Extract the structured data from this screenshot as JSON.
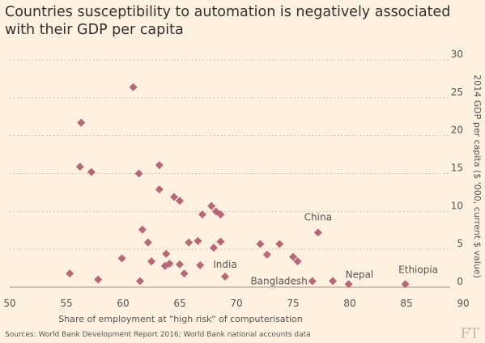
{
  "title": "Countries susceptibility to automation is negatively associated with their GDP per capita",
  "source": "Sources: World Bank Development Report 2016; World Bank national accounts data",
  "logo": "FT",
  "colors": {
    "marker": "#b76778",
    "background": "#fff1e0",
    "grid": "#c0b7ad",
    "text": "#555555"
  },
  "chart_data": {
    "type": "scatter",
    "xlabel": "Share of employment at \"high risk\" of computerisation",
    "ylabel": "2014 GDP per capita ($ '000, current $ value)",
    "xlim": [
      50,
      90
    ],
    "ylim": [
      0,
      30
    ],
    "x_ticks": [
      "50",
      "55",
      "60",
      "65",
      "70",
      "75",
      "80",
      "85",
      "90"
    ],
    "y_ticks": [
      "0",
      "5",
      "10",
      "15",
      "20",
      "25",
      "30"
    ],
    "grid": "horizontal dotted",
    "y_axis_side": "right",
    "points": [
      {
        "x": 60.9,
        "y": 26.4
      },
      {
        "x": 56.3,
        "y": 21.7
      },
      {
        "x": 56.2,
        "y": 15.9
      },
      {
        "x": 57.2,
        "y": 15.2
      },
      {
        "x": 61.4,
        "y": 15.0
      },
      {
        "x": 63.2,
        "y": 16.1
      },
      {
        "x": 63.2,
        "y": 12.9
      },
      {
        "x": 64.5,
        "y": 11.9
      },
      {
        "x": 65.0,
        "y": 11.4
      },
      {
        "x": 67.8,
        "y": 10.7
      },
      {
        "x": 68.2,
        "y": 10.0
      },
      {
        "x": 68.6,
        "y": 9.6
      },
      {
        "x": 67.0,
        "y": 9.6
      },
      {
        "x": 61.7,
        "y": 7.6
      },
      {
        "x": 62.2,
        "y": 5.9
      },
      {
        "x": 65.8,
        "y": 5.9
      },
      {
        "x": 66.6,
        "y": 6.1
      },
      {
        "x": 68.6,
        "y": 6.0
      },
      {
        "x": 68.0,
        "y": 5.2
      },
      {
        "x": 63.8,
        "y": 4.4
      },
      {
        "x": 59.9,
        "y": 3.8
      },
      {
        "x": 62.5,
        "y": 3.4
      },
      {
        "x": 63.7,
        "y": 2.8
      },
      {
        "x": 64.1,
        "y": 3.1
      },
      {
        "x": 65.0,
        "y": 3.0
      },
      {
        "x": 66.8,
        "y": 2.9
      },
      {
        "x": 65.4,
        "y": 1.8
      },
      {
        "x": 55.3,
        "y": 1.8
      },
      {
        "x": 57.8,
        "y": 1.0
      },
      {
        "x": 61.5,
        "y": 0.8
      },
      {
        "x": 72.1,
        "y": 5.7
      },
      {
        "x": 73.8,
        "y": 5.7
      },
      {
        "x": 72.7,
        "y": 4.3
      },
      {
        "x": 75.0,
        "y": 4.0
      },
      {
        "x": 75.4,
        "y": 3.4
      },
      {
        "x": 77.2,
        "y": 7.2,
        "label": "China"
      },
      {
        "x": 69.0,
        "y": 1.4,
        "label": "India"
      },
      {
        "x": 76.7,
        "y": 0.8,
        "label": "Bangladesh"
      },
      {
        "x": 78.5,
        "y": 0.8
      },
      {
        "x": 79.9,
        "y": 0.4,
        "label": "Nepal"
      },
      {
        "x": 84.9,
        "y": 0.4,
        "label": "Ethiopia"
      }
    ]
  }
}
